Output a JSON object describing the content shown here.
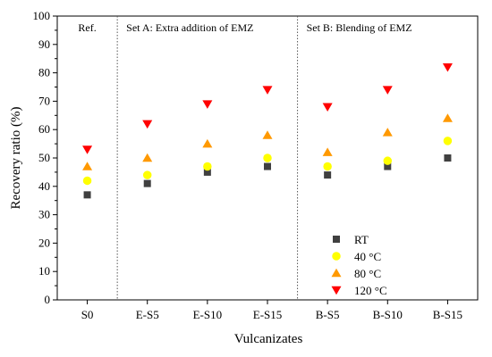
{
  "chart_data": {
    "type": "scatter",
    "xlabel": "Vulcanizates",
    "ylabel": "Recovery ratio (%)",
    "ylim": [
      0,
      100
    ],
    "yticks": [
      0,
      10,
      20,
      30,
      40,
      50,
      60,
      70,
      80,
      90,
      100
    ],
    "categories": [
      "S0",
      "E-S5",
      "E-S10",
      "E-S15",
      "B-S5",
      "B-S10",
      "B-S15"
    ],
    "sections": [
      {
        "label": "Ref.",
        "start": 0,
        "end": 0
      },
      {
        "label": "Set A: Extra addition of EMZ",
        "start": 1,
        "end": 3
      },
      {
        "label": "Set B: Blending of EMZ",
        "start": 4,
        "end": 6
      }
    ],
    "series": [
      {
        "name": "RT",
        "marker": "square",
        "color": "#404040",
        "values": [
          37,
          41,
          45,
          47,
          44,
          47,
          50
        ]
      },
      {
        "name": "40 °C",
        "marker": "circle",
        "color": "#FFFF00",
        "values": [
          42,
          44,
          47,
          50,
          47,
          49,
          56
        ]
      },
      {
        "name": "80 °C",
        "marker": "triangle-up",
        "color": "#FF9900",
        "values": [
          47,
          50,
          55,
          58,
          52,
          59,
          64
        ]
      },
      {
        "name": "120 °C",
        "marker": "triangle-down",
        "color": "#FF0000",
        "values": [
          53,
          62,
          69,
          74,
          68,
          74,
          82
        ]
      }
    ],
    "legend_position": "bottom-right",
    "grid": false
  }
}
